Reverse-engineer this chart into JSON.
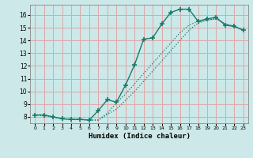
{
  "xlabel": "Humidex (Indice chaleur)",
  "bg_color": "#cce8e8",
  "grid_color": "#dda8a8",
  "line_color": "#1a7a6a",
  "xlim_min": -0.5,
  "xlim_max": 23.5,
  "ylim_min": 7.5,
  "ylim_max": 16.8,
  "xticks": [
    0,
    1,
    2,
    3,
    4,
    5,
    6,
    7,
    8,
    9,
    10,
    11,
    12,
    13,
    14,
    15,
    16,
    17,
    18,
    19,
    20,
    21,
    22,
    23
  ],
  "yticks": [
    8,
    9,
    10,
    11,
    12,
    13,
    14,
    15,
    16
  ],
  "curve_marked_x": [
    0,
    1,
    2,
    3,
    4,
    5,
    6,
    7,
    8,
    9,
    10,
    11,
    12,
    13,
    14,
    15,
    16,
    17,
    18,
    19,
    20,
    21,
    22,
    23
  ],
  "curve_marked_y": [
    8.15,
    8.15,
    8.0,
    7.85,
    7.8,
    7.8,
    7.75,
    8.5,
    9.35,
    9.15,
    10.5,
    12.1,
    14.1,
    14.2,
    15.3,
    16.2,
    16.45,
    16.45,
    15.5,
    15.7,
    15.8,
    15.2,
    15.1,
    14.8
  ],
  "curve_dot1_x": [
    0,
    1,
    2,
    3,
    4,
    5,
    6,
    7,
    8,
    9,
    10,
    11,
    12,
    13,
    14,
    15,
    16,
    17,
    18,
    19,
    20,
    21,
    22,
    23
  ],
  "curve_dot1_y": [
    8.15,
    8.15,
    8.0,
    7.85,
    7.8,
    7.8,
    7.75,
    7.75,
    8.2,
    8.6,
    9.3,
    10.0,
    10.8,
    11.6,
    12.4,
    13.2,
    14.0,
    14.8,
    15.35,
    15.6,
    15.7,
    15.3,
    15.1,
    14.8
  ],
  "curve_dot2_x": [
    0,
    2,
    3,
    6,
    7,
    8,
    9,
    10,
    11,
    12,
    13,
    14,
    15,
    16,
    17,
    18,
    19,
    20,
    21,
    22,
    23
  ],
  "curve_dot2_y": [
    8.15,
    8.0,
    7.85,
    7.75,
    7.75,
    8.3,
    9.1,
    9.8,
    10.6,
    11.4,
    12.2,
    13.0,
    13.8,
    14.6,
    15.2,
    15.5,
    15.6,
    15.7,
    15.3,
    15.1,
    14.8
  ]
}
